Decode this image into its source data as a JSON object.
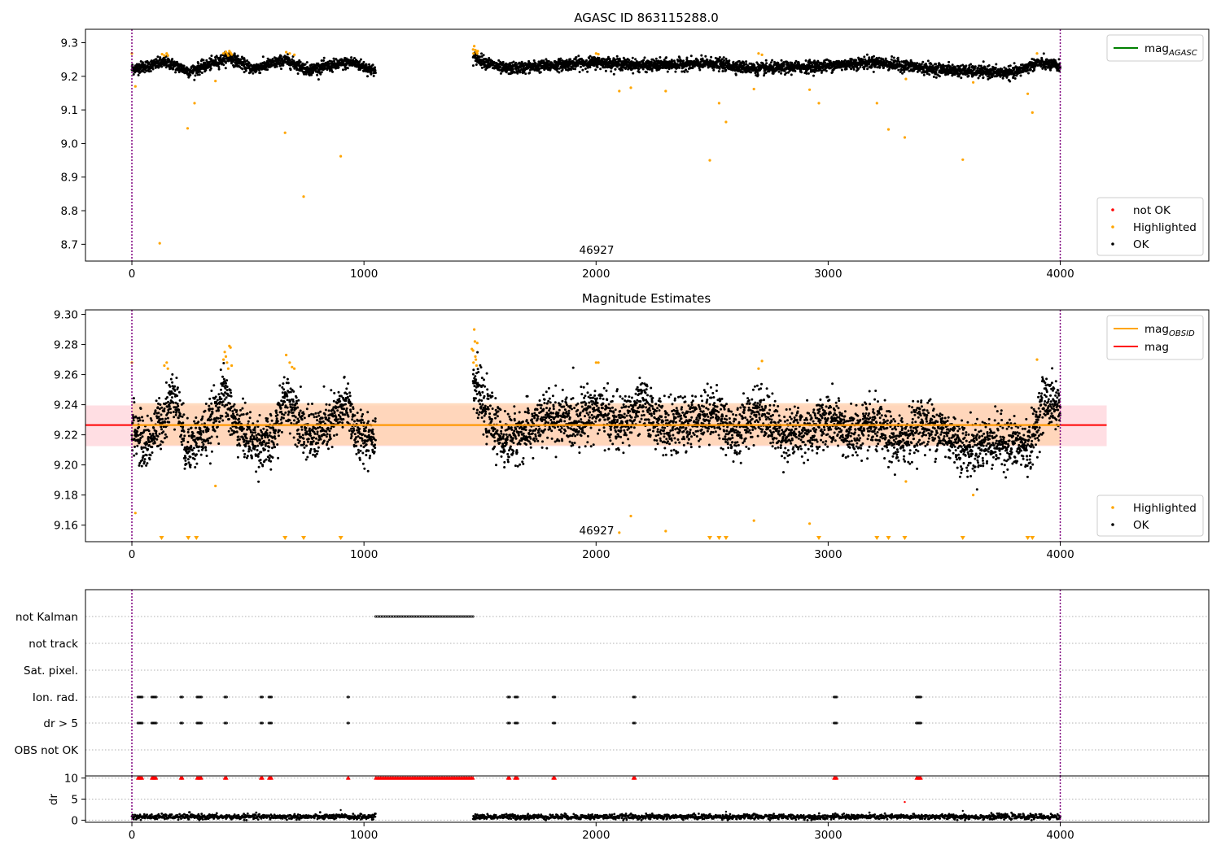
{
  "chart_data": [
    {
      "type": "scatter",
      "title": "AGASC ID 863115288.0",
      "annotation": "46927",
      "xlim": [
        -200,
        4640
      ],
      "ylim": [
        8.65,
        9.34
      ],
      "xticks": [
        0,
        1000,
        2000,
        3000,
        4000
      ],
      "yticks": [
        8.7,
        8.8,
        8.9,
        9.0,
        9.1,
        9.2,
        9.3
      ],
      "ytick_labels": [
        "8.7",
        "8.8",
        "8.9",
        "9.0",
        "9.1",
        "9.2",
        "9.3"
      ],
      "grid": false,
      "vlines": [
        0,
        4000
      ],
      "legend_lines": [
        {
          "label": "mag",
          "sub": "AGASC",
          "color": "#008000"
        }
      ],
      "legend_lines_position": "top-right",
      "legend_points": [
        {
          "label": "not OK",
          "color": "#ff0000"
        },
        {
          "label": "Highlighted",
          "color": "#ffa500"
        },
        {
          "label": "OK",
          "color": "#000000"
        }
      ],
      "legend_points_position": "lower-right",
      "ok_segments": [
        {
          "x": [
            0,
            1050
          ],
          "wave": [
            [
              0,
              9.222
            ],
            [
              150,
              9.242
            ],
            [
              250,
              9.214
            ],
            [
              420,
              9.257
            ],
            [
              520,
              9.222
            ],
            [
              660,
              9.248
            ],
            [
              760,
              9.22
            ],
            [
              950,
              9.242
            ],
            [
              1050,
              9.215
            ]
          ]
        },
        {
          "x": [
            1470,
            4000
          ],
          "wave": [
            [
              1470,
              9.257
            ],
            [
              1600,
              9.222
            ],
            [
              2000,
              9.242
            ],
            [
              2200,
              9.232
            ],
            [
              2500,
              9.238
            ],
            [
              2700,
              9.222
            ],
            [
              3000,
              9.232
            ],
            [
              3200,
              9.242
            ],
            [
              3400,
              9.225
            ],
            [
              3600,
              9.215
            ],
            [
              3800,
              9.21
            ],
            [
              3900,
              9.24
            ],
            [
              4000,
              9.23
            ]
          ]
        }
      ],
      "highlighted": [
        [
          0,
          9.268
        ],
        [
          15,
          9.17
        ],
        [
          120,
          8.703
        ],
        [
          130,
          9.266
        ],
        [
          140,
          9.262
        ],
        [
          150,
          9.268
        ],
        [
          155,
          9.262
        ],
        [
          240,
          9.045
        ],
        [
          270,
          9.12
        ],
        [
          360,
          9.186
        ],
        [
          395,
          9.268
        ],
        [
          405,
          9.273
        ],
        [
          410,
          9.268
        ],
        [
          415,
          9.262
        ],
        [
          420,
          9.275
        ],
        [
          425,
          9.27
        ],
        [
          430,
          9.265
        ],
        [
          660,
          9.032
        ],
        [
          665,
          9.272
        ],
        [
          680,
          9.268
        ],
        [
          700,
          9.264
        ],
        [
          740,
          8.842
        ],
        [
          900,
          8.962
        ],
        [
          1470,
          9.28
        ],
        [
          1475,
          9.29
        ],
        [
          1480,
          9.278
        ],
        [
          1485,
          9.272
        ],
        [
          1490,
          9.275
        ],
        [
          1472,
          9.268
        ],
        [
          1488,
          9.268
        ],
        [
          2000,
          9.268
        ],
        [
          2010,
          9.266
        ],
        [
          2100,
          9.156
        ],
        [
          2150,
          9.166
        ],
        [
          2300,
          9.156
        ],
        [
          2490,
          8.95
        ],
        [
          2530,
          9.12
        ],
        [
          2560,
          9.064
        ],
        [
          2680,
          9.162
        ],
        [
          2700,
          9.268
        ],
        [
          2715,
          9.264
        ],
        [
          2920,
          9.16
        ],
        [
          2960,
          9.12
        ],
        [
          3210,
          9.12
        ],
        [
          3260,
          9.042
        ],
        [
          3330,
          9.018
        ],
        [
          3335,
          9.192
        ],
        [
          3580,
          8.952
        ],
        [
          3625,
          9.182
        ],
        [
          3860,
          9.148
        ],
        [
          3880,
          9.092
        ],
        [
          3900,
          9.268
        ]
      ]
    },
    {
      "type": "scatter",
      "title": "Magnitude Estimates",
      "annotation": "46927",
      "xlim": [
        -200,
        4640
      ],
      "ylim": [
        9.149,
        9.303
      ],
      "xticks": [
        0,
        1000,
        2000,
        3000,
        4000
      ],
      "yticks": [
        9.16,
        9.18,
        9.2,
        9.22,
        9.24,
        9.26,
        9.28,
        9.3
      ],
      "ytick_labels": [
        "9.16",
        "9.18",
        "9.20",
        "9.22",
        "9.24",
        "9.26",
        "9.28",
        "9.30"
      ],
      "grid": false,
      "vlines": [
        0,
        4000
      ],
      "mag_line": 9.2265,
      "mag_band": [
        9.2125,
        9.2395
      ],
      "mag_band_x": [
        -200,
        4200
      ],
      "obsid_line": {
        "x": [
          0,
          4000
        ],
        "y": 9.2265
      },
      "obsid_band": [
        9.213,
        9.241
      ],
      "obsid_band_x": [
        0,
        4000
      ],
      "legend_lines": [
        {
          "label": "mag",
          "sub": "OBSID",
          "color": "#ffa500"
        },
        {
          "label": "mag",
          "sub": "",
          "color": "#ff0000"
        }
      ],
      "legend_lines_position": "top-right",
      "legend_points": [
        {
          "label": "Highlighted",
          "color": "#ffa500"
        },
        {
          "label": "OK",
          "color": "#000000"
        }
      ],
      "legend_points_position": "lower-right",
      "ok_segments": [
        {
          "x": [
            0,
            1050
          ],
          "wave": [
            [
              0,
              9.226
            ],
            [
              60,
              9.212
            ],
            [
              150,
              9.236
            ],
            [
              185,
              9.25
            ],
            [
              230,
              9.212
            ],
            [
              280,
              9.216
            ],
            [
              330,
              9.224
            ],
            [
              400,
              9.248
            ],
            [
              440,
              9.228
            ],
            [
              520,
              9.216
            ],
            [
              600,
              9.214
            ],
            [
              660,
              9.244
            ],
            [
              700,
              9.238
            ],
            [
              760,
              9.218
            ],
            [
              850,
              9.226
            ],
            [
              930,
              9.242
            ],
            [
              970,
              9.218
            ],
            [
              1050,
              9.22
            ]
          ]
        },
        {
          "x": [
            1470,
            4000
          ],
          "wave": [
            [
              1470,
              9.258
            ],
            [
              1520,
              9.236
            ],
            [
              1600,
              9.216
            ],
            [
              1700,
              9.222
            ],
            [
              1800,
              9.232
            ],
            [
              1900,
              9.228
            ],
            [
              2000,
              9.238
            ],
            [
              2100,
              9.226
            ],
            [
              2200,
              9.24
            ],
            [
              2300,
              9.224
            ],
            [
              2400,
              9.228
            ],
            [
              2500,
              9.236
            ],
            [
              2600,
              9.22
            ],
            [
              2700,
              9.238
            ],
            [
              2800,
              9.22
            ],
            [
              2900,
              9.222
            ],
            [
              3000,
              9.23
            ],
            [
              3100,
              9.22
            ],
            [
              3200,
              9.226
            ],
            [
              3300,
              9.214
            ],
            [
              3400,
              9.228
            ],
            [
              3500,
              9.222
            ],
            [
              3600,
              9.21
            ],
            [
              3700,
              9.216
            ],
            [
              3800,
              9.214
            ],
            [
              3870,
              9.212
            ],
            [
              3930,
              9.244
            ],
            [
              4000,
              9.238
            ]
          ]
        }
      ],
      "highlighted": [
        [
          0,
          9.268
        ],
        [
          15,
          9.168
        ],
        [
          140,
          9.266
        ],
        [
          150,
          9.268
        ],
        [
          155,
          9.264
        ],
        [
          360,
          9.186
        ],
        [
          395,
          9.27
        ],
        [
          400,
          9.275
        ],
        [
          405,
          9.272
        ],
        [
          410,
          9.268
        ],
        [
          415,
          9.264
        ],
        [
          420,
          9.279
        ],
        [
          425,
          9.278
        ],
        [
          430,
          9.266
        ],
        [
          665,
          9.273
        ],
        [
          680,
          9.268
        ],
        [
          690,
          9.265
        ],
        [
          700,
          9.264
        ],
        [
          1465,
          9.277
        ],
        [
          1470,
          9.276
        ],
        [
          1475,
          9.29
        ],
        [
          1478,
          9.282
        ],
        [
          1480,
          9.272
        ],
        [
          1482,
          9.27
        ],
        [
          1485,
          9.266
        ],
        [
          1488,
          9.281
        ],
        [
          1472,
          9.268
        ],
        [
          2000,
          9.268
        ],
        [
          2010,
          9.268
        ],
        [
          2100,
          9.155
        ],
        [
          2150,
          9.166
        ],
        [
          2300,
          9.156
        ],
        [
          2680,
          9.163
        ],
        [
          2700,
          9.264
        ],
        [
          2715,
          9.269
        ],
        [
          2920,
          9.161
        ],
        [
          3335,
          9.189
        ],
        [
          3625,
          9.18
        ],
        [
          3900,
          9.27
        ]
      ],
      "below_range": [
        128,
        243,
        278,
        660,
        740,
        900,
        2490,
        2530,
        2560,
        2960,
        3210,
        3260,
        3330,
        3580,
        3860,
        3880
      ]
    },
    {
      "type": "scatter",
      "title": "",
      "xlim": [
        -200,
        4640
      ],
      "xticks": [
        0,
        1000,
        2000,
        3000,
        4000
      ],
      "grid": true,
      "vlines": [
        0,
        4000
      ],
      "flag_rows": [
        "not Kalman",
        "not track",
        "Sat. pixel.",
        "Ion. rad.",
        "dr > 5",
        "OBS not OK"
      ],
      "flags": {
        "not Kalman": [
          [
            1050,
            1470
          ]
        ],
        "not track": [],
        "Sat. pixel.": [],
        "Ion. rad.": [
          [
            25,
            45
          ],
          [
            85,
            105
          ],
          [
            210,
            220
          ],
          [
            280,
            300
          ],
          [
            400,
            410
          ],
          [
            555,
            565
          ],
          [
            590,
            605
          ],
          [
            930,
            935
          ],
          [
            1620,
            1630
          ],
          [
            1650,
            1665
          ],
          [
            1815,
            1825
          ],
          [
            2160,
            2170
          ],
          [
            3025,
            3040
          ],
          [
            3380,
            3400
          ]
        ],
        "dr > 5": [
          [
            25,
            45
          ],
          [
            85,
            105
          ],
          [
            210,
            220
          ],
          [
            280,
            300
          ],
          [
            400,
            410
          ],
          [
            555,
            565
          ],
          [
            590,
            605
          ],
          [
            930,
            935
          ],
          [
            1620,
            1630
          ],
          [
            1650,
            1665
          ],
          [
            1815,
            1825
          ],
          [
            2160,
            2170
          ],
          [
            3025,
            3040
          ],
          [
            3380,
            3400
          ]
        ],
        "OBS not OK": []
      },
      "dr_ylabel": "dr",
      "dr_ylim": [
        -0.5,
        10.5
      ],
      "dr_yticks": [
        0,
        5,
        10
      ],
      "dr_ytick_labels": [
        "0",
        "5",
        "10"
      ],
      "dr_clipped": 10,
      "dr_ok_segments": [
        [
          0,
          1050
        ],
        [
          1470,
          4000
        ]
      ],
      "dr_level": 0.8,
      "dr_red_ranges": [
        [
          25,
          45
        ],
        [
          85,
          105
        ],
        [
          210,
          220
        ],
        [
          280,
          300
        ],
        [
          400,
          410
        ],
        [
          555,
          565
        ],
        [
          590,
          605
        ],
        [
          930,
          935
        ],
        [
          1050,
          1470
        ],
        [
          1620,
          1630
        ],
        [
          1650,
          1665
        ],
        [
          1815,
          1825
        ],
        [
          2160,
          2170
        ],
        [
          3025,
          3040
        ],
        [
          3380,
          3400
        ]
      ],
      "dr_extra_points": [
        [
          3330,
          4.3
        ],
        [
          900,
          2.4
        ],
        [
          250,
          1.9
        ],
        [
          3580,
          2.2
        ],
        [
          2560,
          2.0
        ]
      ]
    }
  ]
}
